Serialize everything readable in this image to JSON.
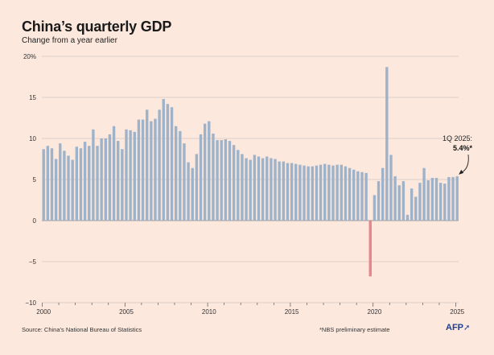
{
  "title": "China’s quarterly GDP",
  "subtitle": "Change from a year earlier",
  "source": "Source: China’s National Bureau of Statistics",
  "footnote": "*NBS preliminary estimate",
  "logo": "AFP",
  "colors": {
    "background": "#fde8dd",
    "bar": "#9eb3c9",
    "negative_bar": "#e8848a",
    "grid": "#b8b8b8",
    "text": "#1a1a1a"
  },
  "annotation": {
    "line1": "1Q 2025:",
    "line2": "5.4%*"
  },
  "chart_data": {
    "type": "bar",
    "title": "China’s quarterly GDP",
    "subtitle": "Change from a year earlier",
    "ylim": [
      -10,
      20
    ],
    "yticks": [
      20,
      15,
      10,
      5,
      0,
      -5,
      -10
    ],
    "ytick_labels": [
      "20%",
      "15",
      "10",
      "5",
      "0",
      "−5",
      "−10"
    ],
    "xticks": [
      "2000",
      "2005",
      "2010",
      "2015",
      "2020",
      "2025"
    ],
    "grid": true,
    "series": [
      {
        "categories": [
          "1Q 2000",
          "2Q 2000",
          "3Q 2000",
          "4Q 2000",
          "1Q 2001",
          "2Q 2001",
          "3Q 2001",
          "4Q 2001",
          "1Q 2002",
          "2Q 2002",
          "3Q 2002",
          "4Q 2002",
          "1Q 2003",
          "2Q 2003",
          "3Q 2003",
          "4Q 2003",
          "1Q 2004",
          "2Q 2004",
          "3Q 2004",
          "4Q 2004",
          "1Q 2005",
          "2Q 2005",
          "3Q 2005",
          "4Q 2005",
          "1Q 2006",
          "2Q 2006",
          "3Q 2006",
          "4Q 2006",
          "1Q 2007",
          "2Q 2007",
          "3Q 2007",
          "4Q 2007",
          "1Q 2008",
          "2Q 2008",
          "3Q 2008",
          "4Q 2008",
          "1Q 2009",
          "2Q 2009",
          "3Q 2009",
          "4Q 2009",
          "1Q 2010",
          "2Q 2010",
          "3Q 2010",
          "4Q 2010",
          "1Q 2011",
          "2Q 2011",
          "3Q 2011",
          "4Q 2011",
          "1Q 2012",
          "2Q 2012",
          "3Q 2012",
          "4Q 2012",
          "1Q 2013",
          "2Q 2013",
          "3Q 2013",
          "4Q 2013",
          "1Q 2014",
          "2Q 2014",
          "3Q 2014",
          "4Q 2014",
          "1Q 2015",
          "2Q 2015",
          "3Q 2015",
          "4Q 2015",
          "1Q 2016",
          "2Q 2016",
          "3Q 2016",
          "4Q 2016",
          "1Q 2017",
          "2Q 2017",
          "3Q 2017",
          "4Q 2017",
          "1Q 2018",
          "2Q 2018",
          "3Q 2018",
          "4Q 2018",
          "1Q 2019",
          "2Q 2019",
          "3Q 2019",
          "4Q 2019",
          "1Q 2020",
          "2Q 2020",
          "3Q 2020",
          "4Q 2020",
          "1Q 2021",
          "2Q 2021",
          "3Q 2021",
          "4Q 2021",
          "1Q 2022",
          "2Q 2022",
          "3Q 2022",
          "4Q 2022",
          "1Q 2023",
          "2Q 2023",
          "3Q 2023",
          "4Q 2023",
          "1Q 2024",
          "2Q 2024",
          "3Q 2024",
          "4Q 2024",
          "1Q 2025"
        ],
        "values": [
          8.7,
          9.1,
          8.8,
          7.5,
          9.4,
          8.5,
          7.9,
          7.4,
          9.0,
          8.8,
          9.6,
          9.1,
          11.1,
          9.1,
          10.0,
          10.0,
          10.5,
          11.5,
          9.7,
          8.7,
          11.1,
          11.0,
          10.8,
          12.3,
          12.3,
          13.5,
          12.1,
          12.4,
          13.5,
          14.8,
          14.2,
          13.8,
          11.5,
          10.9,
          9.4,
          7.1,
          6.4,
          8.1,
          10.5,
          11.8,
          12.1,
          10.6,
          9.8,
          9.8,
          9.9,
          9.7,
          9.2,
          8.6,
          8.1,
          7.6,
          7.4,
          8.0,
          7.8,
          7.6,
          7.8,
          7.6,
          7.5,
          7.2,
          7.2,
          7.0,
          7.0,
          6.9,
          6.8,
          6.7,
          6.6,
          6.6,
          6.7,
          6.8,
          6.9,
          6.8,
          6.7,
          6.8,
          6.8,
          6.6,
          6.4,
          6.2,
          6.0,
          5.9,
          5.8,
          -6.8,
          3.1,
          4.8,
          6.4,
          18.7,
          8.0,
          5.4,
          4.3,
          4.8,
          0.7,
          3.9,
          2.9,
          4.6,
          6.4,
          4.9,
          5.2,
          5.2,
          4.6,
          4.5,
          5.3,
          5.3,
          5.4
        ]
      }
    ]
  }
}
